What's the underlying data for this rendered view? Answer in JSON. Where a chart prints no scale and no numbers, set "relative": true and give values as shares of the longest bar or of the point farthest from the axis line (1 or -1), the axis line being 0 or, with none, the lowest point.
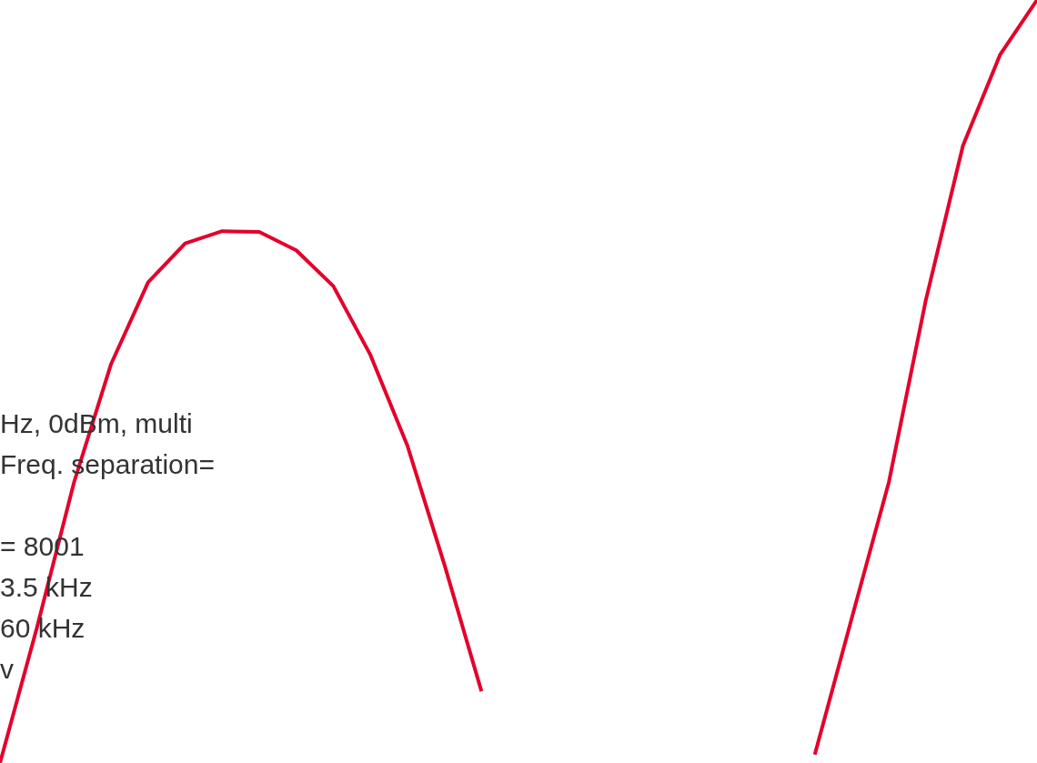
{
  "chart_data": {
    "type": "line",
    "relative": true,
    "categories": [
      null,
      null,
      null,
      null,
      null,
      null,
      null,
      null,
      null,
      null,
      null,
      null,
      null,
      null,
      null,
      null,
      null,
      null,
      null,
      null,
      null,
      null,
      null,
      null,
      null,
      null,
      null,
      null,
      null
    ],
    "series": [
      {
        "color": "#e4002b",
        "values": [
          0,
          0.178,
          0.368,
          0.523,
          0.63,
          0.681,
          0.697,
          0.696,
          0.672,
          0.625,
          0.535,
          0.416,
          0.26,
          0.094,
          null,
          null,
          null,
          null,
          null,
          null,
          null,
          null,
          null,
          null,
          null,
          null,
          null,
          null,
          null
        ]
      },
      {
        "color": "#e4002b",
        "values": [
          null,
          null,
          null,
          null,
          null,
          null,
          null,
          null,
          null,
          null,
          null,
          null,
          null,
          null,
          null,
          null,
          null,
          null,
          null,
          null,
          null,
          null,
          0.011,
          0.19,
          0.368,
          0.607,
          0.809,
          0.928,
          1
        ]
      }
    ],
    "annotations": [
      "Hz, 0dBm, multi",
      "Freq. separation=",
      "= 8001",
      "3.5 kHz",
      "60 kHz",
      "v"
    ],
    "marker": "none",
    "legend": false
  }
}
